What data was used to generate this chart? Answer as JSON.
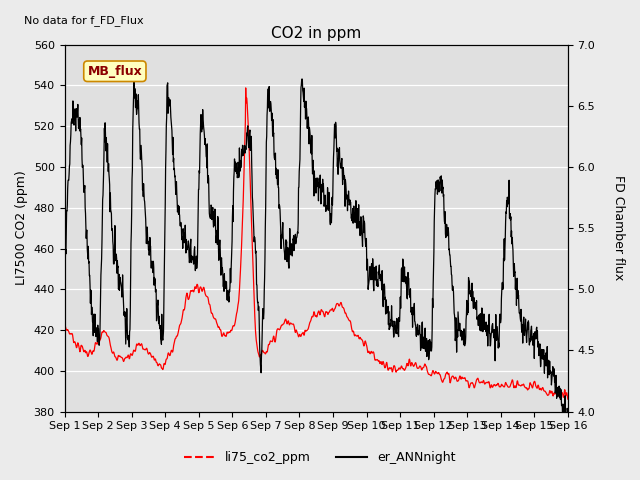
{
  "title": "CO2 in ppm",
  "ylabel_left": "LI7500 CO2 (ppm)",
  "ylabel_right": "FD Chamber flux",
  "no_data_text": "No data for f_FD_Flux",
  "mb_flux_label": "MB_flux",
  "ylim_left": [
    380,
    560
  ],
  "ylim_right": [
    4.0,
    7.0
  ],
  "yticks_left": [
    380,
    400,
    420,
    440,
    460,
    480,
    500,
    520,
    540,
    560
  ],
  "yticks_right": [
    4.0,
    4.5,
    5.0,
    5.5,
    6.0,
    6.5,
    7.0
  ],
  "xtick_labels": [
    "Sep 1",
    "Sep 2",
    "Sep 3",
    "Sep 4",
    "Sep 5",
    "Sep 6",
    "Sep 7",
    "Sep 8",
    "Sep 9",
    "Sep 10",
    "Sep 11",
    "Sep 12",
    "Sep 13",
    "Sep 14",
    "Sep 15",
    "Sep 16"
  ],
  "xlim": [
    0,
    15
  ],
  "fig_facecolor": "#ebebeb",
  "plot_facecolor": "#e0e0e0",
  "line1_color": "#ff0000",
  "line2_color": "#000000",
  "legend1": "li75_co2_ppm",
  "legend2": "er_ANNnight",
  "title_fontsize": 11,
  "ylabel_fontsize": 9,
  "tick_fontsize": 8,
  "legend_fontsize": 9,
  "nodata_fontsize": 8,
  "mb_fontsize": 9,
  "red_kp_t": [
    0,
    0.2,
    0.4,
    0.6,
    0.8,
    1.0,
    1.2,
    1.4,
    1.6,
    1.8,
    2.0,
    2.2,
    2.4,
    2.6,
    2.8,
    3.0,
    3.2,
    3.4,
    3.6,
    3.8,
    4.0,
    4.2,
    4.4,
    4.6,
    4.8,
    5.0,
    5.1,
    5.2,
    5.3,
    5.38,
    5.42,
    5.5,
    5.6,
    5.7,
    5.8,
    6.0,
    6.2,
    6.4,
    6.6,
    6.8,
    7.0,
    7.2,
    7.4,
    7.6,
    7.8,
    8.0,
    8.2,
    8.4,
    8.6,
    8.8,
    9.0,
    9.2,
    9.4,
    9.6,
    9.8,
    10.0,
    10.2,
    10.4,
    10.6,
    10.8,
    11.0,
    11.2,
    11.4,
    11.6,
    11.8,
    12.0,
    12.2,
    12.4,
    12.6,
    12.8,
    13.0,
    13.2,
    13.4,
    13.6,
    13.8,
    14.0,
    14.2,
    14.4,
    14.6,
    14.8,
    15.0
  ],
  "red_kp_v": [
    422,
    418,
    412,
    410,
    408,
    414,
    420,
    412,
    406,
    406,
    408,
    414,
    410,
    408,
    402,
    404,
    410,
    420,
    434,
    440,
    442,
    438,
    430,
    420,
    418,
    420,
    425,
    435,
    470,
    520,
    540,
    510,
    460,
    415,
    408,
    408,
    415,
    420,
    425,
    422,
    418,
    420,
    426,
    430,
    428,
    430,
    434,
    428,
    420,
    415,
    412,
    408,
    404,
    402,
    400,
    400,
    402,
    403,
    402,
    400,
    400,
    398,
    397,
    396,
    396,
    395,
    394,
    395,
    394,
    392,
    392,
    393,
    394,
    393,
    392,
    393,
    392,
    390,
    389,
    388,
    388
  ],
  "black_kp_t": [
    0,
    0.1,
    0.25,
    0.45,
    0.65,
    0.85,
    0.95,
    1.05,
    1.2,
    1.45,
    1.65,
    1.85,
    1.95,
    2.05,
    2.2,
    2.45,
    2.65,
    2.85,
    2.95,
    3.05,
    3.15,
    3.35,
    3.5,
    3.65,
    3.85,
    3.95,
    4.05,
    4.15,
    4.35,
    4.55,
    4.75,
    4.95,
    5.05,
    5.2,
    5.45,
    5.55,
    5.65,
    5.75,
    5.85,
    5.95,
    6.05,
    6.15,
    6.35,
    6.55,
    6.75,
    6.95,
    7.05,
    7.2,
    7.45,
    7.65,
    7.85,
    7.95,
    8.05,
    8.25,
    8.45,
    8.65,
    8.85,
    8.95,
    9.05,
    9.25,
    9.45,
    9.65,
    9.85,
    9.95,
    10.05,
    10.25,
    10.45,
    10.65,
    10.85,
    10.95,
    11.05,
    11.25,
    11.45,
    11.65,
    11.85,
    11.95,
    12.05,
    12.25,
    12.45,
    12.65,
    12.85,
    12.95,
    13.05,
    13.2,
    13.45,
    13.65,
    13.85,
    13.95,
    14.05,
    14.25,
    14.45,
    14.65,
    14.85,
    14.95,
    15.0
  ],
  "black_kp_v": [
    442,
    490,
    524,
    525,
    470,
    425,
    420,
    418,
    525,
    460,
    445,
    420,
    418,
    537,
    530,
    465,
    448,
    422,
    420,
    540,
    530,
    484,
    468,
    462,
    455,
    453,
    525,
    520,
    478,
    468,
    444,
    440,
    500,
    500,
    514,
    512,
    470,
    440,
    398,
    440,
    540,
    530,
    492,
    455,
    462,
    462,
    540,
    530,
    492,
    490,
    482,
    478,
    515,
    498,
    482,
    478,
    470,
    467,
    447,
    446,
    445,
    425,
    420,
    418,
    450,
    440,
    420,
    416,
    413,
    412,
    492,
    488,
    462,
    420,
    418,
    416,
    442,
    432,
    422,
    420,
    418,
    416,
    442,
    490,
    442,
    422,
    418,
    416,
    415,
    408,
    400,
    395,
    382,
    380,
    380
  ]
}
